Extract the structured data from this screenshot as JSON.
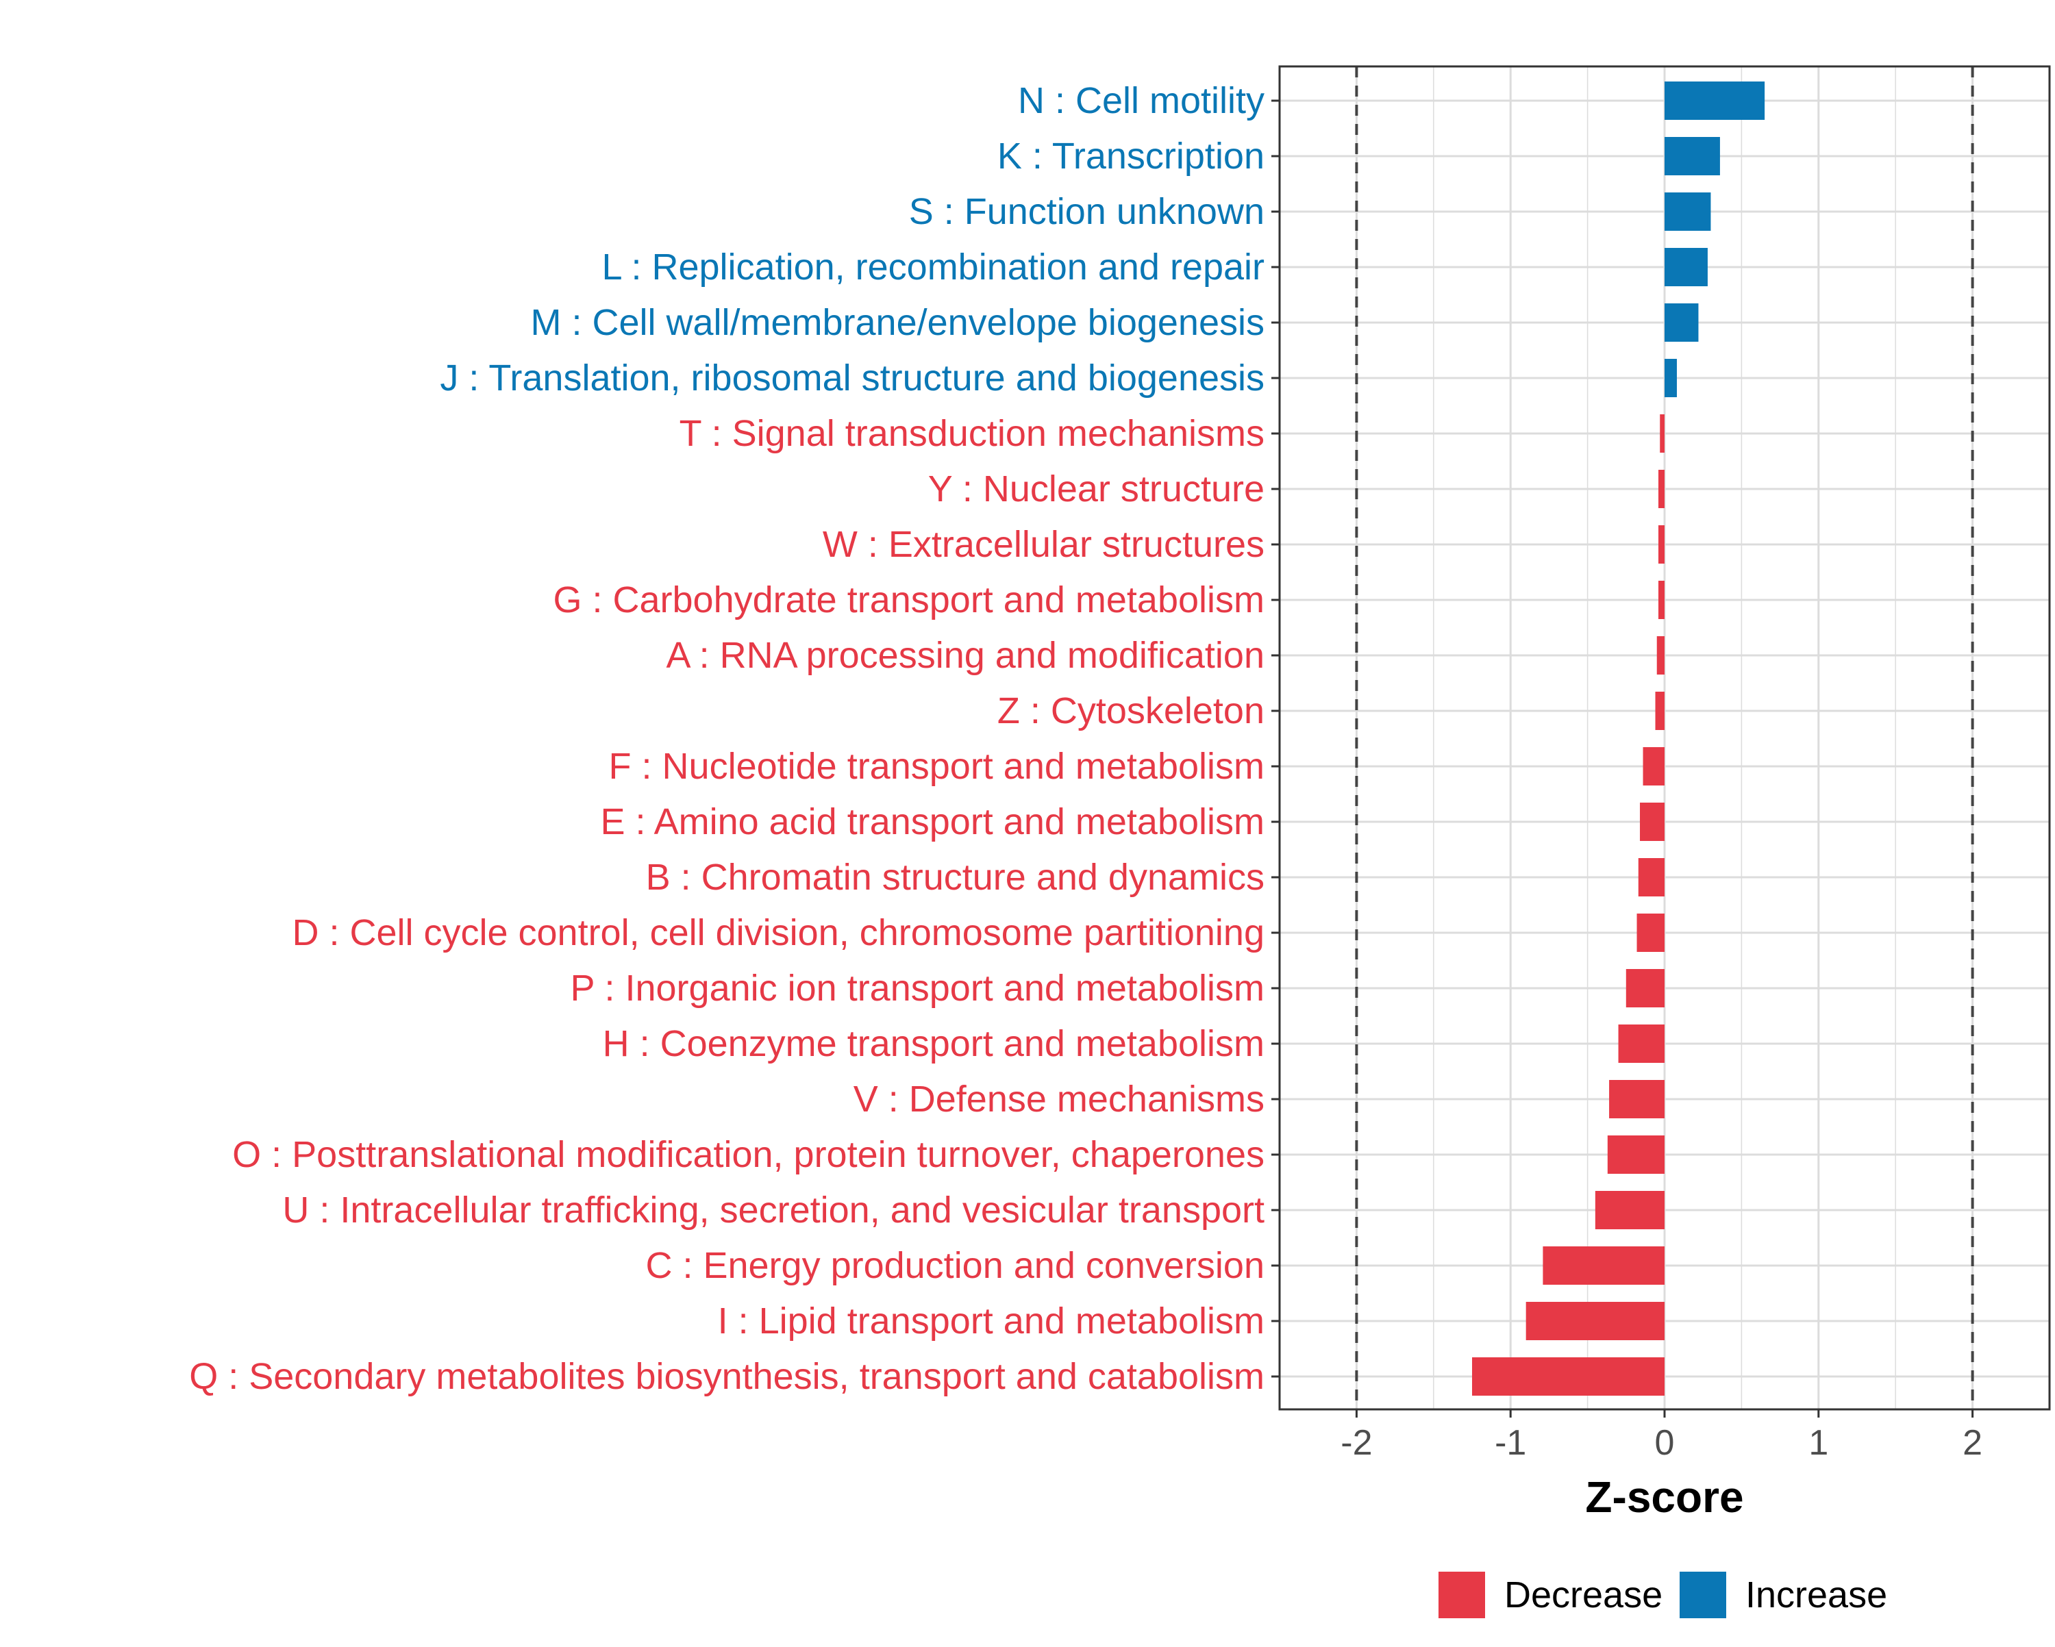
{
  "chart_data": {
    "type": "bar",
    "orientation": "horizontal",
    "title": "",
    "xlabel": "Z-score",
    "ylabel": "",
    "xlim": [
      -2.5,
      2.5
    ],
    "xticks": [
      -2,
      -1,
      0,
      1,
      2
    ],
    "xtick_labels": [
      "-2",
      "-1",
      "0",
      "1",
      "2"
    ],
    "reference_lines": [
      -2,
      2
    ],
    "grid": true,
    "legend_position": "bottom",
    "legend": [
      {
        "label": "Decrease",
        "color": "#E63946"
      },
      {
        "label": "Increase",
        "color": "#0A77B5"
      }
    ],
    "categories": [
      "N : Cell motility",
      "K : Transcription",
      "S : Function unknown",
      "L : Replication, recombination and repair",
      "M : Cell wall/membrane/envelope biogenesis",
      "J : Translation, ribosomal structure and biogenesis",
      "T : Signal transduction mechanisms",
      "Y : Nuclear structure",
      "W : Extracellular structures",
      "G : Carbohydrate transport and metabolism",
      "A : RNA processing and modification",
      "Z : Cytoskeleton",
      "F : Nucleotide transport and metabolism",
      "E : Amino acid transport and metabolism",
      "B : Chromatin structure and dynamics",
      "D : Cell cycle control, cell division, chromosome partitioning",
      "P : Inorganic ion transport and metabolism",
      "H : Coenzyme transport and metabolism",
      "V : Defense mechanisms",
      "O : Posttranslational modification, protein turnover, chaperones",
      "U : Intracellular trafficking, secretion, and vesicular transport",
      "C : Energy production and conversion",
      "I : Lipid transport and metabolism",
      "Q : Secondary metabolites biosynthesis, transport and catabolism"
    ],
    "values": [
      0.65,
      0.36,
      0.3,
      0.28,
      0.22,
      0.08,
      -0.03,
      -0.04,
      -0.04,
      -0.04,
      -0.05,
      -0.06,
      -0.14,
      -0.16,
      -0.17,
      -0.18,
      -0.25,
      -0.3,
      -0.36,
      -0.37,
      -0.45,
      -0.79,
      -0.9,
      -1.25
    ],
    "groups": [
      "Increase",
      "Increase",
      "Increase",
      "Increase",
      "Increase",
      "Increase",
      "Decrease",
      "Decrease",
      "Decrease",
      "Decrease",
      "Decrease",
      "Decrease",
      "Decrease",
      "Decrease",
      "Decrease",
      "Decrease",
      "Decrease",
      "Decrease",
      "Decrease",
      "Decrease",
      "Decrease",
      "Decrease",
      "Decrease",
      "Decrease"
    ]
  }
}
